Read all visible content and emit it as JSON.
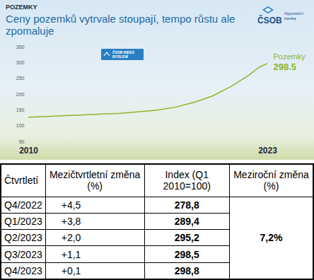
{
  "header": {
    "section": "POZEMKY",
    "title": "Ceny pozemků vytrvale stoupají, tempo růstu ale zpomaluje",
    "logo": [
      "ČSOB",
      "Hypoteční banka"
    ],
    "badge": "ČSOB INDEX BYDLENÍ"
  },
  "chart_data": {
    "type": "line",
    "x": [
      2010,
      2011,
      2012,
      2013,
      2014,
      2015,
      2016,
      2017,
      2018,
      2019,
      2020,
      2021,
      2022,
      2022.5,
      2023
    ],
    "series": [
      {
        "name": "Pozemky",
        "color": "#8cb52a",
        "values": [
          128,
          130,
          133,
          135,
          138,
          140,
          145,
          150,
          160,
          175,
          195,
          225,
          262,
          285,
          298.5
        ]
      }
    ],
    "annotations": [
      {
        "label": "Pozemky",
        "x": 2023,
        "value": 298.5
      }
    ],
    "xlim": [
      2010,
      2023
    ],
    "xticks": [
      2010,
      2023
    ],
    "ylim": [
      50,
      350
    ],
    "yticks": [
      50,
      100,
      150,
      200,
      250,
      300,
      350
    ],
    "grid": false
  },
  "table": {
    "columns": [
      "Čtvrtletí",
      "Mezičtvrtletní změna (%)",
      "Index (Q1 2010=100)",
      "Meziroční změna (%)"
    ],
    "rows": [
      [
        "Q4/2022",
        "+4,5",
        "278,8"
      ],
      [
        "Q1/2023",
        "+3,8",
        "289,4"
      ],
      [
        "Q2/2023",
        "+2,0",
        "295,2"
      ],
      [
        "Q3/2023",
        "+1,1",
        "298,5"
      ],
      [
        "Q4/2023",
        "+0,1",
        "298,8"
      ]
    ],
    "merged_last_column": "7,2%"
  }
}
